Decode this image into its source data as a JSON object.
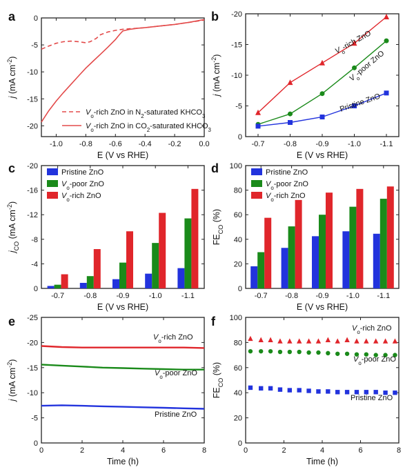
{
  "colors": {
    "pristine": "#2233dd",
    "poor": "#1a8a1a",
    "rich": "#e0262b",
    "rich_line_a": "#e34a4a"
  },
  "chart_data": [
    {
      "panel": "a",
      "type": "line",
      "xlabel": "E (V vs RHE)",
      "ylabel_main": "j",
      "ylabel_unit": "(mA cm",
      "ylabel_sup": "-2",
      "ylabel_close": ")",
      "xlim": [
        -1.1,
        0.0
      ],
      "ylim": [
        -22,
        0
      ],
      "xticks": [
        -1.0,
        -0.8,
        -0.6,
        -0.4,
        -0.2,
        0.0
      ],
      "xtick_labels": [
        "-1.0",
        "-0.8",
        "-0.6",
        "-0.4",
        "-0.2",
        "0.0"
      ],
      "yticks": [
        0,
        -5,
        -10,
        -15,
        -20
      ],
      "ytick_labels": [
        "0",
        "-5",
        "-10",
        "-15",
        "-20"
      ],
      "series": [
        {
          "name": "Vo-rich ZnO in N2-saturated KHCO3",
          "legend_parts": [
            "V",
            "o",
            "-rich ZnO in N",
            "2",
            "-saturated KHCO",
            "3"
          ],
          "style": "dashed",
          "x": [
            -1.1,
            -1.05,
            -1.0,
            -0.95,
            -0.9,
            -0.85,
            -0.8,
            -0.77,
            -0.73,
            -0.7,
            -0.65,
            -0.6,
            -0.55,
            -0.5,
            -0.45,
            -0.4,
            -0.3,
            -0.2,
            -0.1,
            0.0
          ],
          "y": [
            -5.8,
            -5.2,
            -4.7,
            -4.4,
            -4.3,
            -4.4,
            -4.6,
            -4.4,
            -3.8,
            -3.1,
            -2.6,
            -2.3,
            -2.1,
            -2.0,
            -1.9,
            -1.8,
            -1.5,
            -1.2,
            -0.8,
            -0.4
          ]
        },
        {
          "name": "Vo-rich ZnO in CO2-saturated KHCO3",
          "legend_parts": [
            "V",
            "o",
            "-rich ZnO in CO",
            "2",
            "-saturated KHCO",
            "3"
          ],
          "style": "solid",
          "x": [
            -1.1,
            -1.05,
            -1.0,
            -0.95,
            -0.9,
            -0.85,
            -0.8,
            -0.75,
            -0.7,
            -0.65,
            -0.6,
            -0.57,
            -0.55,
            -0.5,
            -0.45,
            -0.4,
            -0.3,
            -0.2,
            -0.1,
            0.0
          ],
          "y": [
            -19.3,
            -17.2,
            -15.4,
            -13.8,
            -12.3,
            -10.8,
            -9.3,
            -8.0,
            -6.7,
            -5.4,
            -4.0,
            -3.0,
            -2.4,
            -2.1,
            -1.9,
            -1.8,
            -1.5,
            -1.2,
            -0.8,
            -0.3
          ]
        }
      ]
    },
    {
      "panel": "b",
      "type": "line",
      "xlabel": "E (V vs RHE)",
      "ylabel_main": "j",
      "ylabel_unit": "(mA cm",
      "ylabel_sup": "-2",
      "ylabel_close": ")",
      "categories": [
        "-0.7",
        "-0.8",
        "-0.9",
        "-1.0",
        "-1.1"
      ],
      "ylim": [
        0,
        -20
      ],
      "yticks": [
        0,
        -5,
        -10,
        -15,
        -20
      ],
      "ytick_labels": [
        "0",
        "-5",
        "-10",
        "-15",
        "-20"
      ],
      "series": [
        {
          "key": "rich",
          "values": [
            -3.9,
            -8.8,
            -12.0,
            -15.2,
            -19.5
          ],
          "marker": "triangle"
        },
        {
          "key": "poor",
          "values": [
            -2.0,
            -3.7,
            -7.0,
            -11.2,
            -15.6
          ],
          "marker": "circle"
        },
        {
          "key": "pristine",
          "values": [
            -1.7,
            -2.3,
            -3.2,
            -5.0,
            -7.1
          ],
          "marker": "square"
        }
      ],
      "annotations": [
        {
          "parts": [
            "V",
            "o",
            "-rich ZnO"
          ]
        },
        {
          "parts": [
            "V",
            "o",
            "-poor ZnO"
          ]
        },
        {
          "parts": [
            "Pristine ZnO"
          ]
        }
      ]
    },
    {
      "panel": "c",
      "type": "bar",
      "xlabel": "E (V vs RHE)",
      "ylabel_main": "j",
      "ylabel_sub": "CO",
      "ylabel_unit": " (mA cm",
      "ylabel_sup": "-2",
      "ylabel_close": ")",
      "categories": [
        "-0.7",
        "-0.8",
        "-0.9",
        "-1.0",
        "-1.1"
      ],
      "ylim": [
        0,
        -20
      ],
      "yticks": [
        0,
        -4,
        -8,
        -12,
        -16,
        -20
      ],
      "ytick_labels": [
        "0",
        "-4",
        "-8",
        "-12",
        "-16",
        "-20"
      ],
      "series": [
        {
          "key": "pristine",
          "legend_parts": [
            "Pristine ZnO"
          ],
          "values": [
            -0.4,
            -0.9,
            -1.5,
            -2.4,
            -3.3
          ]
        },
        {
          "key": "poor",
          "legend_parts": [
            "V",
            "o",
            "-poor ZnO"
          ],
          "values": [
            -0.6,
            -2.0,
            -4.2,
            -7.4,
            -11.4
          ]
        },
        {
          "key": "rich",
          "legend_parts": [
            "V",
            "o",
            "-rich ZnO"
          ],
          "values": [
            -2.3,
            -6.4,
            -9.3,
            -12.3,
            -16.2
          ]
        }
      ]
    },
    {
      "panel": "d",
      "type": "bar",
      "xlabel": "E (V vs RHE)",
      "ylabel_main": "FE",
      "ylabel_sub": "CO",
      "ylabel_unit": " (%)",
      "categories": [
        "-0.7",
        "-0.8",
        "-0.9",
        "-1.0",
        "-1.1"
      ],
      "ylim": [
        0,
        100
      ],
      "yticks": [
        0,
        20,
        40,
        60,
        80,
        100
      ],
      "ytick_labels": [
        "0",
        "20",
        "40",
        "60",
        "80",
        "100"
      ],
      "series": [
        {
          "key": "pristine",
          "legend_parts": [
            "Pristine ZnO"
          ],
          "values": [
            18,
            33,
            42.5,
            46.5,
            44.5
          ]
        },
        {
          "key": "poor",
          "legend_parts": [
            "V",
            "o",
            "-poor ZnO"
          ],
          "values": [
            29.5,
            50.5,
            60,
            66.5,
            73
          ]
        },
        {
          "key": "rich",
          "legend_parts": [
            "V",
            "o",
            "-rich ZnO"
          ],
          "values": [
            57.5,
            72,
            78,
            81,
            83
          ]
        }
      ]
    },
    {
      "panel": "e",
      "type": "line",
      "xlabel": "Time (h)",
      "ylabel_main": "j",
      "ylabel_unit": "(mA cm",
      "ylabel_sup": "-2",
      "ylabel_close": ")",
      "xlim": [
        0,
        8
      ],
      "ylim": [
        0,
        -25
      ],
      "xticks": [
        0,
        2,
        4,
        6,
        8
      ],
      "xtick_labels": [
        "0",
        "2",
        "4",
        "6",
        "8"
      ],
      "yticks": [
        0,
        -5,
        -10,
        -15,
        -20,
        -25
      ],
      "ytick_labels": [
        "0",
        "-5",
        "-10",
        "-15",
        "-20",
        "-25"
      ],
      "series": [
        {
          "key": "rich",
          "x": [
            0,
            1,
            2,
            3,
            4,
            5,
            6,
            7,
            8
          ],
          "y": [
            -19.3,
            -19.1,
            -19.0,
            -19.0,
            -19.0,
            -19.0,
            -19.0,
            -19.0,
            -18.9
          ]
        },
        {
          "key": "poor",
          "x": [
            0,
            1,
            2,
            3,
            4,
            5,
            6,
            7,
            8
          ],
          "y": [
            -15.6,
            -15.4,
            -15.2,
            -15.0,
            -14.9,
            -14.8,
            -14.7,
            -14.6,
            -14.6
          ]
        },
        {
          "key": "pristine",
          "x": [
            0,
            1,
            2,
            3,
            4,
            5,
            6,
            7,
            8
          ],
          "y": [
            -7.4,
            -7.5,
            -7.4,
            -7.3,
            -7.2,
            -7.1,
            -7.0,
            -6.9,
            -6.8
          ]
        }
      ],
      "annotations": [
        {
          "parts": [
            "V",
            "o",
            "-rich ZnO"
          ]
        },
        {
          "parts": [
            "V",
            "o",
            "-poor ZnO"
          ]
        },
        {
          "parts": [
            "Pristine ZnO"
          ]
        }
      ]
    },
    {
      "panel": "f",
      "type": "scatter",
      "xlabel": "Time (h)",
      "ylabel_main": "FE",
      "ylabel_sub": "CO",
      "ylabel_unit": " (%)",
      "xlim": [
        0,
        8
      ],
      "ylim": [
        0,
        100
      ],
      "xticks": [
        0,
        2,
        4,
        6,
        8
      ],
      "xtick_labels": [
        "0",
        "2",
        "4",
        "6",
        "8"
      ],
      "yticks": [
        0,
        20,
        40,
        60,
        80,
        100
      ],
      "ytick_labels": [
        "0",
        "20",
        "40",
        "60",
        "80",
        "100"
      ],
      "series": [
        {
          "key": "rich",
          "marker": "triangle",
          "x": [
            0.25,
            0.8,
            1.3,
            1.8,
            2.3,
            2.8,
            3.3,
            3.8,
            4.3,
            4.8,
            5.3,
            5.8,
            6.3,
            6.8,
            7.3,
            7.8
          ],
          "y": [
            83,
            82,
            82,
            81,
            81,
            81,
            81,
            81,
            82,
            81,
            82,
            81,
            81,
            81,
            81,
            81
          ]
        },
        {
          "key": "poor",
          "marker": "circle",
          "x": [
            0.25,
            0.8,
            1.3,
            1.8,
            2.3,
            2.8,
            3.3,
            3.8,
            4.3,
            4.8,
            5.3,
            5.8,
            6.3,
            6.8,
            7.3,
            7.8
          ],
          "y": [
            73,
            73,
            73,
            72.5,
            72.5,
            72.5,
            72,
            72,
            71.5,
            71,
            71,
            70.5,
            70.5,
            70,
            70,
            70
          ]
        },
        {
          "key": "pristine",
          "marker": "square",
          "x": [
            0.25,
            0.8,
            1.3,
            1.8,
            2.3,
            2.8,
            3.3,
            3.8,
            4.3,
            4.8,
            5.3,
            5.8,
            6.3,
            6.8,
            7.3,
            7.8
          ],
          "y": [
            44,
            43.5,
            43.5,
            42.5,
            42,
            42,
            41.5,
            41,
            41,
            40.5,
            40.5,
            40.5,
            40.5,
            40.5,
            40,
            40
          ]
        }
      ],
      "annotations": [
        {
          "parts": [
            "V",
            "o",
            "-rich ZnO"
          ]
        },
        {
          "parts": [
            "V",
            "o",
            "-poor ZnO"
          ]
        },
        {
          "parts": [
            "Pristine ZnO"
          ]
        }
      ]
    }
  ]
}
